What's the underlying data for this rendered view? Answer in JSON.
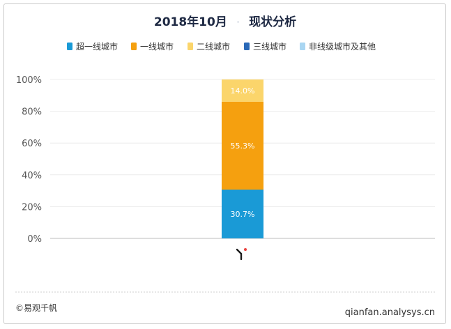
{
  "chart_data": {
    "type": "bar",
    "stacked": true,
    "title": "2018年10月 · 现状分析",
    "title_parts": [
      "2018年10月",
      "·",
      "现状分析"
    ],
    "categories": [
      ""
    ],
    "series": [
      {
        "name": "超一线城市",
        "values": [
          30.7
        ],
        "color": "#1a9ad6"
      },
      {
        "name": "一线城市",
        "values": [
          55.3
        ],
        "color": "#f5a00f"
      },
      {
        "name": "二线城市",
        "values": [
          14.0
        ],
        "color": "#fbd56b"
      },
      {
        "name": "三线城市",
        "values": [
          0
        ],
        "color": "#2a69b8"
      },
      {
        "name": "非线级城市及其他",
        "values": [
          0
        ],
        "color": "#a9d6f2"
      }
    ],
    "data_labels": [
      "30.7%",
      "55.3%",
      "14.0%"
    ],
    "yticks": [
      "0%",
      "20%",
      "40%",
      "60%",
      "80%",
      "100%"
    ],
    "ylim": [
      0,
      100
    ],
    "grid": true,
    "legend_position": "top"
  },
  "footer": {
    "source": "©易观千帆",
    "site": "qianfan.analysys.cn"
  },
  "colors": {
    "logo_dot": "#e8423f"
  }
}
